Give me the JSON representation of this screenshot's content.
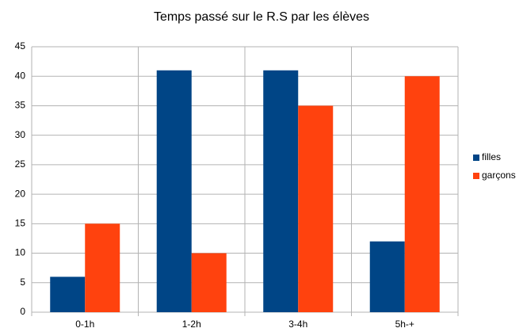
{
  "chart_data": {
    "type": "bar",
    "title": "Temps passé sur le R.S par les élèves",
    "categories": [
      "0-1h",
      "1-2h",
      "3-4h",
      "5h-+"
    ],
    "series": [
      {
        "name": "filles",
        "color": "#004586",
        "values": [
          6,
          41,
          41,
          12
        ]
      },
      {
        "name": "garçons",
        "color": "#ff420e",
        "values": [
          15,
          10,
          35,
          40
        ]
      }
    ],
    "ylim": [
      0,
      45
    ],
    "yticks": [
      0,
      5,
      10,
      15,
      20,
      25,
      30,
      35,
      40,
      45
    ],
    "grid": true,
    "legend": "right"
  }
}
